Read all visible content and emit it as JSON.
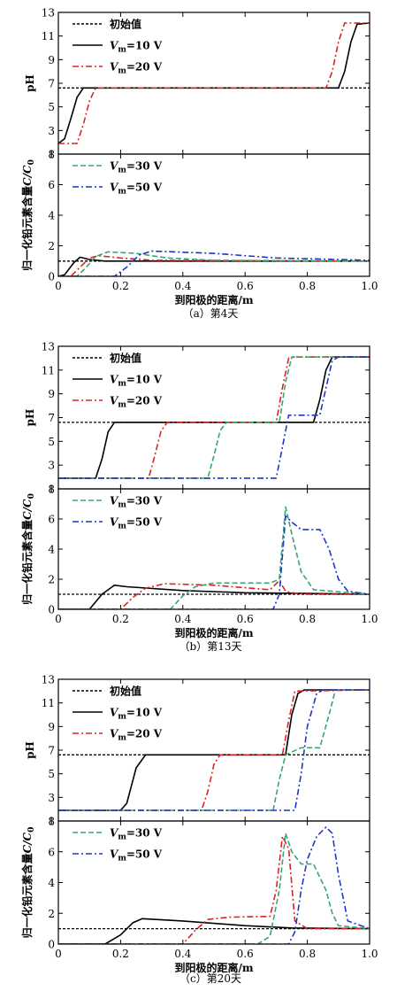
{
  "panels": [
    {
      "id": "a",
      "caption": "（a）第4天"
    },
    {
      "id": "b",
      "caption": "（b）第13天"
    },
    {
      "id": "c",
      "caption": "（c）第20天"
    }
  ],
  "chart_data": [
    {
      "type": "line",
      "panel": "a",
      "caption": "（a）第4天",
      "xlabel": "到阳极的距离/m",
      "xlim": [
        0,
        1.0
      ],
      "xticks": [
        "0",
        "0.2",
        "0.4",
        "0.6",
        "0.8",
        "1.0"
      ],
      "subplots": [
        {
          "ylabel": "pH",
          "ylim": [
            1,
            13
          ],
          "yticks": [
            "1",
            "3",
            "5",
            "7",
            "9",
            "11",
            "13"
          ],
          "legend": [
            "初始值",
            "Vm=10 V",
            "Vm=20 V"
          ],
          "series": [
            {
              "name": "初始值",
              "color": "#000000",
              "dash": "dotted",
              "x": [
                0,
                1.0
              ],
              "y": [
                6.6,
                6.6
              ]
            },
            {
              "name": "Vm=10 V",
              "color": "#000000",
              "dash": "solid",
              "x": [
                0,
                0.02,
                0.04,
                0.06,
                0.08,
                0.1,
                0.7,
                0.9,
                0.92,
                0.94,
                0.96,
                1.0
              ],
              "y": [
                1.9,
                2.3,
                4.0,
                5.8,
                6.6,
                6.6,
                6.6,
                6.6,
                8.0,
                10.5,
                12.0,
                12.1
              ]
            },
            {
              "name": "Vm=20 V",
              "color": "#e0201f",
              "dash": "dashdot",
              "x": [
                0,
                0.06,
                0.08,
                0.1,
                0.12,
                0.14,
                0.86,
                0.88,
                0.9,
                0.92,
                1.0
              ],
              "y": [
                1.9,
                1.9,
                3.5,
                5.5,
                6.6,
                6.6,
                6.6,
                8.0,
                10.5,
                12.1,
                12.1
              ]
            }
          ]
        },
        {
          "ylabel": "归一化铅元素含量C/C0",
          "ylim": [
            0,
            8
          ],
          "yticks": [
            "0",
            "2",
            "4",
            "6",
            "8"
          ],
          "legend": [
            "Vm=30 V",
            "Vm=50 V"
          ],
          "series": [
            {
              "name": "初始值",
              "color": "#000000",
              "dash": "dotted",
              "x": [
                0,
                1.0
              ],
              "y": [
                1.0,
                1.0
              ]
            },
            {
              "name": "Vm=10 V",
              "color": "#000000",
              "dash": "solid",
              "x": [
                0,
                0.02,
                0.05,
                0.07,
                0.1,
                0.15,
                0.3,
                1.0
              ],
              "y": [
                0,
                0.1,
                0.9,
                1.25,
                1.1,
                1.0,
                1.0,
                1.0
              ]
            },
            {
              "name": "Vm=20 V",
              "color": "#e0201f",
              "dash": "dashdot",
              "x": [
                0,
                0.04,
                0.07,
                0.1,
                0.13,
                0.2,
                0.3,
                1.0
              ],
              "y": [
                0,
                0,
                0.6,
                1.2,
                1.35,
                1.2,
                1.05,
                1.0
              ]
            },
            {
              "name": "Vm=30 V",
              "color": "#3aa572",
              "dash": "dashed",
              "x": [
                0,
                0.06,
                0.09,
                0.12,
                0.16,
                0.25,
                0.35,
                0.5,
                1.0
              ],
              "y": [
                0,
                0,
                0.6,
                1.3,
                1.6,
                1.5,
                1.2,
                1.05,
                1.0
              ]
            },
            {
              "name": "Vm=50 V",
              "color": "#1f35c8",
              "dash": "dashdot",
              "x": [
                0,
                0.18,
                0.22,
                0.26,
                0.3,
                0.5,
                0.7,
                0.9,
                1.0
              ],
              "y": [
                0,
                0,
                0.6,
                1.4,
                1.65,
                1.5,
                1.2,
                1.1,
                1.05
              ]
            }
          ]
        }
      ]
    },
    {
      "type": "line",
      "panel": "b",
      "caption": "（b）第13天",
      "xlabel": "到阳极的距离/m",
      "xlim": [
        0,
        1.0
      ],
      "xticks": [
        "0",
        "0.2",
        "0.4",
        "0.6",
        "0.8",
        "1.0"
      ],
      "subplots": [
        {
          "ylabel": "pH",
          "ylim": [
            1,
            13
          ],
          "yticks": [
            "1",
            "3",
            "5",
            "7",
            "9",
            "11",
            "13"
          ],
          "legend": [
            "初始值",
            "Vm=10 V",
            "Vm=20 V"
          ],
          "series": [
            {
              "name": "初始值",
              "color": "#000000",
              "dash": "dotted",
              "x": [
                0,
                1.0
              ],
              "y": [
                6.6,
                6.6
              ]
            },
            {
              "name": "Vm=10 V",
              "color": "#000000",
              "dash": "solid",
              "x": [
                0,
                0.12,
                0.14,
                0.16,
                0.18,
                0.2,
                0.82,
                0.84,
                0.86,
                0.88,
                1.0
              ],
              "y": [
                1.9,
                1.9,
                3.5,
                5.8,
                6.6,
                6.6,
                6.6,
                8.5,
                11.0,
                12.1,
                12.1
              ]
            },
            {
              "name": "Vm=20 V",
              "color": "#e0201f",
              "dash": "dashdot",
              "x": [
                0,
                0.29,
                0.31,
                0.33,
                0.35,
                0.7,
                0.72,
                0.74,
                0.76,
                1.0
              ],
              "y": [
                1.9,
                1.9,
                3.8,
                5.9,
                6.6,
                6.6,
                9.5,
                12.0,
                12.1,
                12.1
              ]
            },
            {
              "name": "Vm=30 V",
              "color": "#3aa572",
              "dash": "dashed",
              "x": [
                0,
                0.48,
                0.5,
                0.52,
                0.54,
                0.71,
                0.73,
                0.75,
                1.0
              ],
              "y": [
                1.9,
                1.9,
                3.8,
                5.9,
                6.6,
                6.6,
                10.0,
                12.1,
                12.1
              ]
            },
            {
              "name": "Vm=50 V",
              "color": "#1f35c8",
              "dash": "dashdot",
              "x": [
                0,
                0.7,
                0.72,
                0.74,
                0.78,
                0.84,
                0.86,
                0.88,
                0.9,
                1.0
              ],
              "y": [
                1.9,
                1.9,
                4.5,
                7.2,
                7.2,
                7.2,
                9.5,
                11.8,
                12.1,
                12.1
              ]
            }
          ]
        },
        {
          "ylabel": "归一化铅元素含量C/C0",
          "ylim": [
            0,
            8
          ],
          "yticks": [
            "0",
            "2",
            "4",
            "6",
            "8"
          ],
          "legend": [
            "Vm=30 V",
            "Vm=50 V"
          ],
          "series": [
            {
              "name": "初始值",
              "color": "#000000",
              "dash": "dotted",
              "x": [
                0,
                1.0
              ],
              "y": [
                1.0,
                1.0
              ]
            },
            {
              "name": "Vm=10 V",
              "color": "#000000",
              "dash": "solid",
              "x": [
                0,
                0.1,
                0.14,
                0.18,
                0.22,
                0.4,
                0.6,
                0.8,
                1.0
              ],
              "y": [
                0,
                0,
                1.0,
                1.6,
                1.5,
                1.25,
                1.1,
                1.05,
                1.0
              ]
            },
            {
              "name": "Vm=20 V",
              "color": "#e0201f",
              "dash": "dashdot",
              "x": [
                0,
                0.2,
                0.24,
                0.28,
                0.34,
                0.5,
                0.68,
                0.71,
                0.73,
                0.75,
                0.8,
                1.0
              ],
              "y": [
                0,
                0,
                0.8,
                1.4,
                1.7,
                1.6,
                1.3,
                1.9,
                1.2,
                1.1,
                1.0,
                1.0
              ]
            },
            {
              "name": "Vm=30 V",
              "color": "#3aa572",
              "dash": "dashed",
              "x": [
                0,
                0.36,
                0.4,
                0.44,
                0.5,
                0.68,
                0.71,
                0.73,
                0.75,
                0.78,
                0.82,
                1.0
              ],
              "y": [
                0,
                0,
                0.9,
                1.5,
                1.75,
                1.75,
                2.0,
                6.8,
                5.0,
                2.5,
                1.3,
                1.0
              ]
            },
            {
              "name": "Vm=50 V",
              "color": "#1f35c8",
              "dash": "dashdot",
              "x": [
                0,
                0.69,
                0.71,
                0.73,
                0.75,
                0.78,
                0.84,
                0.87,
                0.9,
                0.93,
                1.0
              ],
              "y": [
                0,
                0,
                1.0,
                6.2,
                5.8,
                5.3,
                5.3,
                4.0,
                2.0,
                1.2,
                1.0
              ]
            }
          ]
        }
      ]
    },
    {
      "type": "line",
      "panel": "c",
      "caption": "（c）第20天",
      "xlabel": "到阳极的距离/m",
      "xlim": [
        0,
        1.0
      ],
      "xticks": [
        "0",
        "0.2",
        "0.4",
        "0.6",
        "0.8",
        "1.0"
      ],
      "subplots": [
        {
          "ylabel": "pH",
          "ylim": [
            1,
            13
          ],
          "yticks": [
            "1",
            "3",
            "5",
            "7",
            "9",
            "11",
            "13"
          ],
          "legend": [
            "初始值",
            "Vm=10 V",
            "Vm=20 V"
          ],
          "series": [
            {
              "name": "初始值",
              "color": "#000000",
              "dash": "dotted",
              "x": [
                0,
                1.0
              ],
              "y": [
                6.6,
                6.6
              ]
            },
            {
              "name": "Vm=10 V",
              "color": "#000000",
              "dash": "solid",
              "x": [
                0,
                0.2,
                0.22,
                0.25,
                0.28,
                0.3,
                0.73,
                0.75,
                0.77,
                0.79,
                1.0
              ],
              "y": [
                1.9,
                1.9,
                2.5,
                5.5,
                6.6,
                6.6,
                6.6,
                10.0,
                11.8,
                12.1,
                12.1
              ]
            },
            {
              "name": "Vm=20 V",
              "color": "#e0201f",
              "dash": "dashdot",
              "x": [
                0,
                0.46,
                0.48,
                0.5,
                0.52,
                0.72,
                0.74,
                0.76,
                1.0
              ],
              "y": [
                1.9,
                1.9,
                3.5,
                5.8,
                6.6,
                6.6,
                9.5,
                12.0,
                12.1
              ]
            },
            {
              "name": "Vm=30 V",
              "color": "#3aa572",
              "dash": "dashed",
              "x": [
                0,
                0.69,
                0.71,
                0.73,
                0.78,
                0.84,
                0.87,
                0.89,
                1.0
              ],
              "y": [
                1.9,
                1.9,
                4.5,
                6.6,
                7.2,
                7.2,
                10.0,
                12.1,
                12.1
              ]
            },
            {
              "name": "Vm=50 V",
              "color": "#1f35c8",
              "dash": "dashdot",
              "x": [
                0,
                0.76,
                0.78,
                0.8,
                0.83,
                0.85,
                1.0
              ],
              "y": [
                1.9,
                1.9,
                5.0,
                9.0,
                11.8,
                12.1,
                12.1
              ]
            }
          ]
        },
        {
          "ylabel": "归一化铅元素含量C/C0",
          "ylim": [
            0,
            8
          ],
          "yticks": [
            "0",
            "2",
            "4",
            "6",
            "8"
          ],
          "legend": [
            "Vm=30 V",
            "Vm=50 V"
          ],
          "series": [
            {
              "name": "初始值",
              "color": "#000000",
              "dash": "dotted",
              "x": [
                0,
                1.0
              ],
              "y": [
                1.0,
                1.0
              ]
            },
            {
              "name": "Vm=10 V",
              "color": "#000000",
              "dash": "solid",
              "x": [
                0,
                0.15,
                0.2,
                0.24,
                0.27,
                0.4,
                0.6,
                0.75,
                1.0
              ],
              "y": [
                0,
                0,
                0.6,
                1.4,
                1.65,
                1.5,
                1.2,
                1.05,
                1.0
              ]
            },
            {
              "name": "Vm=20 V",
              "color": "#e0201f",
              "dash": "dashdot",
              "x": [
                0,
                0.4,
                0.44,
                0.48,
                0.55,
                0.68,
                0.7,
                0.72,
                0.74,
                0.76,
                0.8,
                1.0
              ],
              "y": [
                0,
                0,
                0.9,
                1.6,
                1.75,
                1.8,
                3.5,
                7.0,
                6.2,
                1.5,
                1.0,
                1.0
              ]
            },
            {
              "name": "Vm=30 V",
              "color": "#3aa572",
              "dash": "dashed",
              "x": [
                0,
                0.64,
                0.68,
                0.71,
                0.73,
                0.75,
                0.78,
                0.82,
                0.86,
                0.88,
                0.9,
                1.0
              ],
              "y": [
                0,
                0,
                0.5,
                3.5,
                7.2,
                6.0,
                5.2,
                5.2,
                3.5,
                2.0,
                1.2,
                1.0
              ]
            },
            {
              "name": "Vm=50 V",
              "color": "#1f35c8",
              "dash": "dashdot",
              "x": [
                0,
                0.74,
                0.76,
                0.78,
                0.8,
                0.83,
                0.86,
                0.88,
                0.9,
                0.93,
                1.0
              ],
              "y": [
                0,
                0,
                0.8,
                3.5,
                5.5,
                7.0,
                7.6,
                7.2,
                4.5,
                1.5,
                1.0
              ]
            }
          ]
        }
      ]
    }
  ]
}
